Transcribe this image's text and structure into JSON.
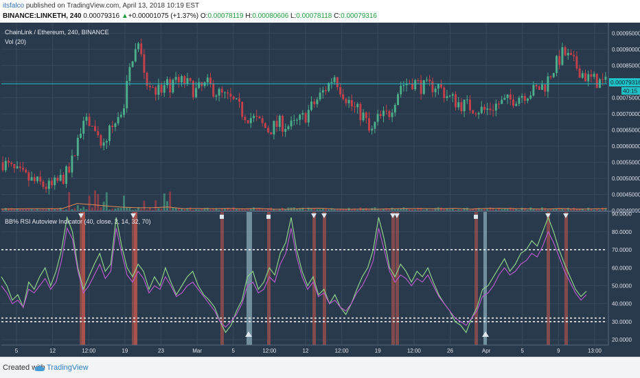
{
  "header": {
    "user": "itsfalco",
    "publish_text": " published on TradingView.com, April 13, 2018 10:19 EST",
    "symbol": "BINANCE:LINKETH, 240",
    "last": "0.00079316",
    "change": "+0.00001075 (+1.37%)",
    "o_label": "O:",
    "o": "0.00078119",
    "h_label": "H:",
    "h": "0.00080606",
    "l_label": "L:",
    "l": "0.00078118",
    "c_label": "C:",
    "c": "0.00079316"
  },
  "price_pane": {
    "title": "ChainLink / Ethereum, 240, BINANCE",
    "vol_label": "Vol (20)",
    "price_tag": "0.00079316",
    "time_tag": "40:15"
  },
  "indicator_pane": {
    "title": "BB% RSI Autoview Indicator (40, close, 2, 14, 32, 70)"
  },
  "footer": {
    "created": "Created with",
    "brand": "TradingView"
  },
  "colors": {
    "background": "#2a3a4d",
    "grid": "#3a4a5e",
    "up": "#4cae8a",
    "down": "#c2414b",
    "bb_line": "#8fd18a",
    "rsi_line": "#b45ac8",
    "price_line": "#20c4c8",
    "red_band": "#c95a4f",
    "blue_band": "#a9d3e0",
    "level_line": "#ffffff"
  },
  "chart_data": [
    {
      "type": "candlestick",
      "title": "ChainLink / Ethereum, 240, BINANCE",
      "y_axis_ticks": [
        "0.00095000",
        "0.00090000",
        "0.00085000",
        "0.00080000",
        "0.00075000",
        "0.00070000",
        "0.00065000",
        "0.00060000",
        "0.00055000",
        "0.00050000",
        "0.00045000",
        "0.00040000"
      ],
      "y_range": [
        0.0004,
        0.00097
      ],
      "last_price": 0.00079316,
      "x_tick_labels": [
        "5",
        "12",
        "12:00",
        "19",
        "23",
        "Mar",
        "5",
        "12:00",
        "12",
        "12:00",
        "19",
        "12:00",
        "26",
        "Apr",
        "5",
        "9",
        "13:00"
      ],
      "close_path": [
        [
          0,
          0.00055
        ],
        [
          0.02,
          0.00052
        ],
        [
          0.05,
          0.00049
        ],
        [
          0.08,
          0.00047
        ],
        [
          0.11,
          0.00052
        ],
        [
          0.13,
          0.00065
        ],
        [
          0.145,
          0.00068
        ],
        [
          0.16,
          0.0006
        ],
        [
          0.18,
          0.00065
        ],
        [
          0.2,
          0.00072
        ],
        [
          0.215,
          0.00088
        ],
        [
          0.225,
          0.00091
        ],
        [
          0.24,
          0.0008
        ],
        [
          0.26,
          0.00077
        ],
        [
          0.28,
          0.00079
        ],
        [
          0.3,
          0.0008
        ],
        [
          0.32,
          0.00077
        ],
        [
          0.34,
          0.00079
        ],
        [
          0.36,
          0.00076
        ],
        [
          0.38,
          0.00074
        ],
        [
          0.4,
          0.0007
        ],
        [
          0.42,
          0.00068
        ],
        [
          0.44,
          0.00065
        ],
        [
          0.46,
          0.00067
        ],
        [
          0.48,
          0.00066
        ],
        [
          0.5,
          0.00069
        ],
        [
          0.52,
          0.00074
        ],
        [
          0.54,
          0.00079
        ],
        [
          0.55,
          0.00082
        ],
        [
          0.56,
          0.00078
        ],
        [
          0.58,
          0.00072
        ],
        [
          0.6,
          0.00069
        ],
        [
          0.61,
          0.00063
        ],
        [
          0.62,
          0.00068
        ],
        [
          0.64,
          0.0007
        ],
        [
          0.66,
          0.00079
        ],
        [
          0.68,
          0.0008
        ],
        [
          0.7,
          0.00078
        ],
        [
          0.72,
          0.00079
        ],
        [
          0.74,
          0.00075
        ],
        [
          0.76,
          0.00073
        ],
        [
          0.78,
          0.00072
        ],
        [
          0.8,
          0.00071
        ],
        [
          0.82,
          0.00073
        ],
        [
          0.84,
          0.00074
        ],
        [
          0.86,
          0.00076
        ],
        [
          0.88,
          0.00077
        ],
        [
          0.9,
          0.00079
        ],
        [
          0.91,
          0.00083
        ],
        [
          0.93,
          0.00089
        ],
        [
          0.95,
          0.00085
        ],
        [
          0.97,
          0.00081
        ],
        [
          1.0,
          0.000793
        ]
      ]
    },
    {
      "type": "line",
      "title": "BB% RSI Autoview Indicator (40, close, 2, 14, 32, 70)",
      "y_axis_ticks": [
        "90.0000",
        "80.0000",
        "70.0000",
        "60.0000",
        "50.0000",
        "40.0000",
        "30.0000",
        "20.0000"
      ],
      "y_range": [
        17,
        91
      ],
      "levels": [
        70,
        32,
        30
      ],
      "series": [
        {
          "key": "bb",
          "values": [
            55,
            50,
            42,
            45,
            38,
            52,
            48,
            55,
            60,
            50,
            58,
            70,
            88,
            80,
            60,
            48,
            55,
            62,
            68,
            58,
            62,
            88,
            72,
            60,
            55,
            62,
            58,
            48,
            55,
            50,
            60,
            52,
            45,
            50,
            55,
            58,
            50,
            45,
            42,
            38,
            30,
            24,
            28,
            36,
            42,
            55,
            58,
            48,
            52,
            60,
            56,
            68,
            74,
            88,
            70,
            58,
            50,
            55,
            45,
            48,
            40,
            45,
            38,
            34,
            40,
            48,
            55,
            60,
            70,
            88,
            76,
            60,
            55,
            62,
            58,
            52,
            58,
            55,
            60,
            52,
            45,
            40,
            36,
            30,
            28,
            24,
            32,
            38,
            48,
            50,
            55,
            60,
            65,
            58,
            62,
            68,
            70,
            75,
            72,
            80,
            88,
            80,
            70,
            62,
            55,
            48,
            44,
            47
          ]
        },
        {
          "key": "rsi",
          "values": [
            50,
            46,
            40,
            42,
            38,
            48,
            46,
            50,
            54,
            48,
            52,
            64,
            82,
            76,
            58,
            46,
            50,
            56,
            62,
            54,
            58,
            82,
            68,
            56,
            52,
            58,
            54,
            46,
            50,
            48,
            55,
            50,
            44,
            46,
            50,
            52,
            48,
            44,
            40,
            36,
            30,
            27,
            30,
            34,
            40,
            50,
            52,
            46,
            48,
            55,
            52,
            62,
            68,
            82,
            66,
            55,
            48,
            52,
            44,
            46,
            40,
            42,
            38,
            36,
            40,
            46,
            50,
            56,
            64,
            82,
            70,
            58,
            52,
            56,
            54,
            50,
            54,
            52,
            56,
            50,
            44,
            40,
            36,
            32,
            30,
            28,
            32,
            36,
            44,
            46,
            50,
            56,
            60,
            56,
            58,
            62,
            64,
            68,
            66,
            72,
            80,
            74,
            66,
            58,
            52,
            46,
            42,
            45
          ]
        }
      ]
    }
  ]
}
